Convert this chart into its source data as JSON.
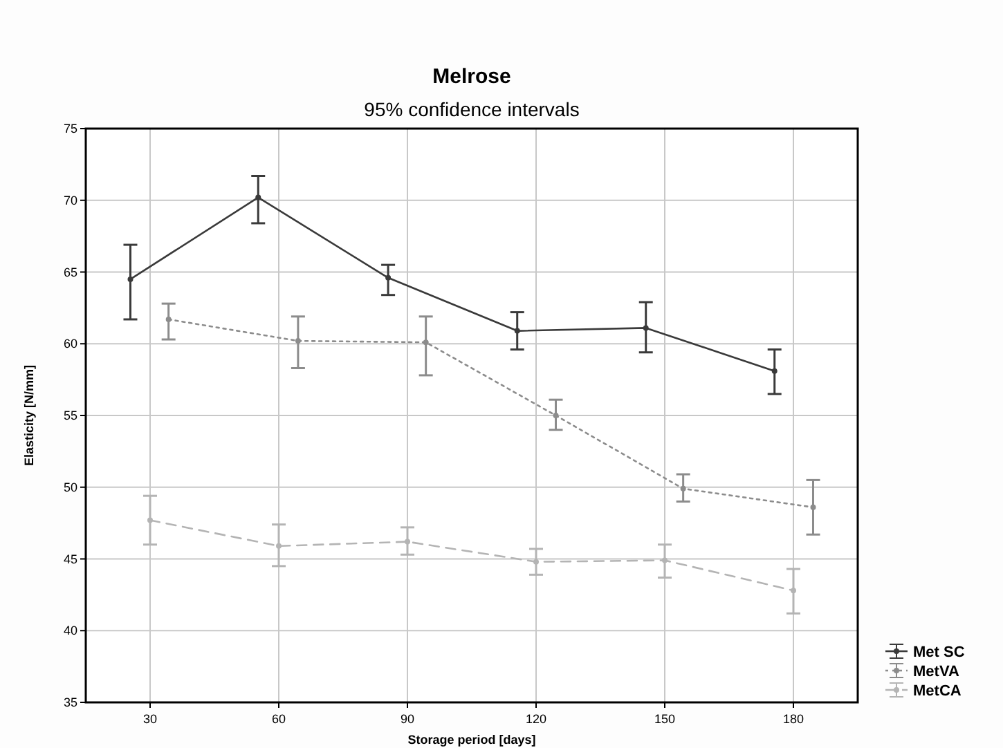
{
  "chart_data": {
    "type": "line",
    "title": "Melrose",
    "subtitle": "95% confidence intervals",
    "xlabel": "Storage period [days]",
    "ylabel": "Elasticity [N/mm]",
    "xlim": [
      15,
      195
    ],
    "xticks": [
      30,
      60,
      90,
      120,
      150,
      180
    ],
    "ylim": [
      35,
      75
    ],
    "yticks": [
      35,
      40,
      45,
      50,
      55,
      60,
      65,
      70,
      75
    ],
    "grid": true,
    "legend": "bottom right",
    "marker": "circle",
    "series": [
      {
        "name": "Met SC",
        "color": "#3a3a3a",
        "line_style": "solid",
        "x": [
          25.4,
          55.2,
          85.5,
          115.6,
          145.6,
          175.6
        ],
        "values": [
          64.5,
          70.2,
          64.6,
          60.9,
          61.1,
          58.1
        ],
        "errors": [
          [
            61.7,
            66.9
          ],
          [
            68.4,
            71.7
          ],
          [
            63.4,
            65.5
          ],
          [
            59.6,
            62.2
          ],
          [
            59.4,
            62.9
          ],
          [
            56.5,
            59.6
          ]
        ]
      },
      {
        "name": "MetVA",
        "color": "#8c8c8c",
        "line_style": "dotted",
        "x": [
          34.3,
          64.5,
          94.3,
          124.6,
          154.3,
          184.6
        ],
        "values": [
          61.7,
          60.2,
          60.1,
          55.0,
          49.9,
          48.6
        ],
        "errors": [
          [
            60.3,
            62.8
          ],
          [
            58.3,
            61.9
          ],
          [
            57.8,
            61.9
          ],
          [
            54.0,
            56.1
          ],
          [
            49.0,
            50.9
          ],
          [
            46.7,
            50.5
          ]
        ]
      },
      {
        "name": "MetCA",
        "color": "#b4b4b4",
        "line_style": "dashed",
        "x": [
          30,
          60,
          90,
          120,
          150,
          180
        ],
        "values": [
          47.7,
          45.9,
          46.2,
          44.8,
          44.9,
          42.8
        ],
        "errors": [
          [
            46.0,
            49.4
          ],
          [
            44.5,
            47.4
          ],
          [
            45.3,
            47.2
          ],
          [
            43.9,
            45.7
          ],
          [
            43.7,
            46.0
          ],
          [
            41.2,
            44.3
          ]
        ]
      }
    ]
  }
}
